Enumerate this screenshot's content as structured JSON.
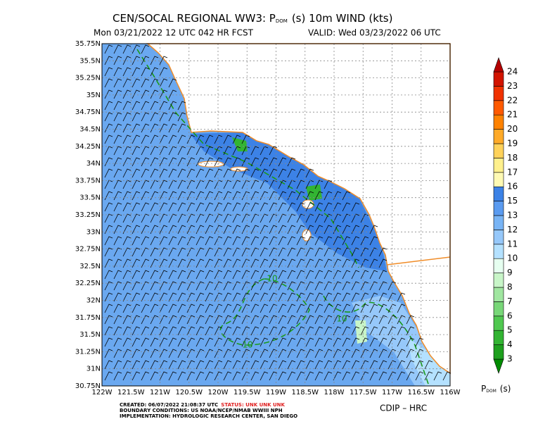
{
  "header": {
    "title_pre": "CEN/SOCAL REGIONAL WW3: P",
    "title_sub": "DOM",
    "title_post": "(s) 10m WIND (kts)",
    "run": "Mon 03/21/2022 12 UTC 042 HR FCST",
    "valid": "VALID: Wed 03/23/2022 06 UTC"
  },
  "map": {
    "lon_labels": [
      "122W",
      "121.5W",
      "121W",
      "120.5W",
      "120W",
      "119.5W",
      "119W",
      "118.5W",
      "118W",
      "117.5W",
      "117W",
      "116.5W",
      "116W"
    ],
    "lat_labels": [
      "30.75N",
      "31N",
      "31.25N",
      "31.5N",
      "31.75N",
      "32N",
      "32.25N",
      "32.5N",
      "32.75N",
      "33N",
      "33.25N",
      "33.5N",
      "33.75N",
      "34N",
      "34.25N",
      "34.5N",
      "34.75N",
      "35N",
      "35.25N",
      "35.5N",
      "35.75N"
    ],
    "contour_labels": [
      "10",
      "10",
      "10"
    ]
  },
  "colorbar": {
    "levels": [
      "3",
      "4",
      "5",
      "6",
      "7",
      "8",
      "9",
      "10",
      "11",
      "12",
      "13",
      "15",
      "16",
      "17",
      "18",
      "19",
      "20",
      "21",
      "22",
      "23",
      "24"
    ],
    "colors": [
      "#008c00",
      "#1ea01e",
      "#32b432",
      "#50c850",
      "#78d778",
      "#a0e6a0",
      "#c8f5c8",
      "#e6fff0",
      "#b4e1ff",
      "#96c8fa",
      "#78b4f5",
      "#5a9bf0",
      "#3c82e6",
      "#fffab4",
      "#fff08c",
      "#ffd25a",
      "#ffaa28",
      "#ff8200",
      "#ff5a00",
      "#f03200",
      "#d21400",
      "#b40000"
    ],
    "label_pre": "P",
    "label_sub": "DOM",
    "label_post": "(s)"
  },
  "footer": {
    "created": "CREATED: 06/07/2022 21:08:37 UTC",
    "status": "STATUS: UNK UNK UNK",
    "boundary": "BOUNDARY CONDITIONS: US NOAA/NCEP/NMAB WWIII NPH",
    "implementation": "IMPLEMENTATION: HYDROLOGIC RESEARCH CENTER, SAN DIEGO",
    "credit": "CDIP – HRC"
  }
}
